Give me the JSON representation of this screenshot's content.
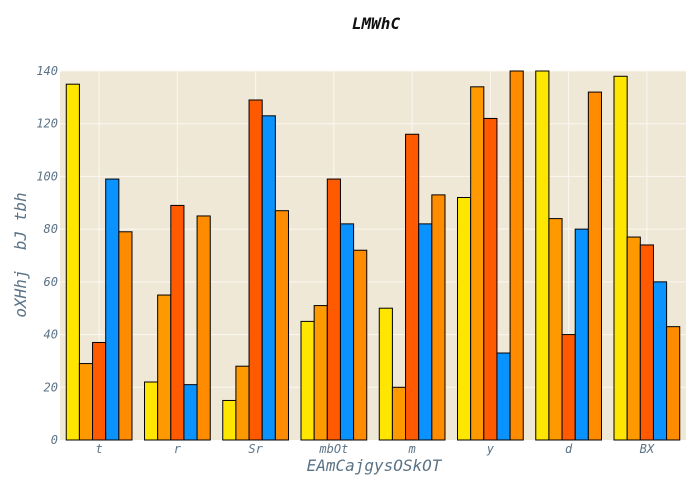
{
  "chart_data": {
    "type": "bar",
    "title": "LMWhC",
    "xlabel": "EAmCajgysOSkOT",
    "ylabel": "oXHhj  bJ tbh",
    "categories": [
      "t",
      "r",
      "Sr",
      "mbOt",
      "m",
      "y",
      "d",
      "BX"
    ],
    "ylim": [
      0,
      140
    ],
    "yticks": [
      0,
      20,
      40,
      60,
      80,
      100,
      120,
      140
    ],
    "grid": true,
    "legend": "none",
    "plot_background": "#efe8d6",
    "grid_color": "#fbf8f1",
    "series": [
      {
        "color": "#ffe600",
        "values": [
          135,
          22,
          15,
          45,
          50,
          92,
          140,
          138
        ]
      },
      {
        "color": "#ff9900",
        "values": [
          29,
          55,
          28,
          51,
          20,
          134,
          84,
          77
        ]
      },
      {
        "color": "#ff5a00",
        "values": [
          37,
          89,
          129,
          99,
          116,
          122,
          40,
          74
        ]
      },
      {
        "color": "#0a93ff",
        "values": [
          99,
          21,
          123,
          82,
          82,
          33,
          80,
          60
        ]
      },
      {
        "color": "#ff8c00",
        "values": [
          79,
          85,
          87,
          72,
          93,
          140,
          132,
          43
        ]
      }
    ]
  }
}
